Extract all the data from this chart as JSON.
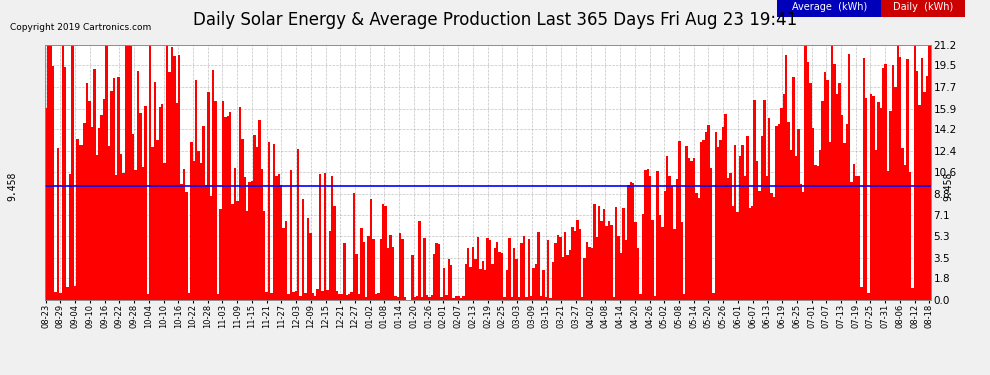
{
  "title": "Daily Solar Energy & Average Production Last 365 Days Fri Aug 23 19:41",
  "copyright": "Copyright 2019 Cartronics.com",
  "average_value": 9.458,
  "average_label": "9.458",
  "yticks": [
    0.0,
    1.8,
    3.5,
    5.3,
    7.1,
    8.8,
    10.6,
    12.4,
    14.2,
    15.9,
    17.7,
    19.5,
    21.2
  ],
  "ylim": [
    0.0,
    21.2
  ],
  "bar_color": "#ff0000",
  "average_line_color": "#0000ff",
  "background_color": "#f0f0f0",
  "plot_bg_color": "#ffffff",
  "grid_color": "#999999",
  "title_fontsize": 12,
  "legend_avg_bg": "#0000bb",
  "legend_daily_bg": "#cc0000",
  "legend_text_color": "#ffffff",
  "xtick_labels": [
    "08-23",
    "08-29",
    "09-04",
    "09-10",
    "09-16",
    "09-22",
    "09-28",
    "10-04",
    "10-10",
    "10-16",
    "10-22",
    "10-28",
    "11-03",
    "11-09",
    "11-15",
    "11-21",
    "11-27",
    "12-03",
    "12-09",
    "12-15",
    "12-21",
    "12-27",
    "01-02",
    "01-08",
    "01-14",
    "01-20",
    "01-26",
    "02-01",
    "02-07",
    "02-13",
    "02-19",
    "02-25",
    "03-03",
    "03-09",
    "03-15",
    "03-21",
    "03-27",
    "04-02",
    "04-08",
    "04-14",
    "04-20",
    "04-26",
    "05-02",
    "05-08",
    "05-14",
    "05-20",
    "05-26",
    "06-01",
    "06-07",
    "06-13",
    "06-19",
    "06-25",
    "07-01",
    "07-07",
    "07-13",
    "07-19",
    "07-25",
    "07-31",
    "08-06",
    "08-12",
    "08-18"
  ],
  "num_bars": 365,
  "seed": 42
}
